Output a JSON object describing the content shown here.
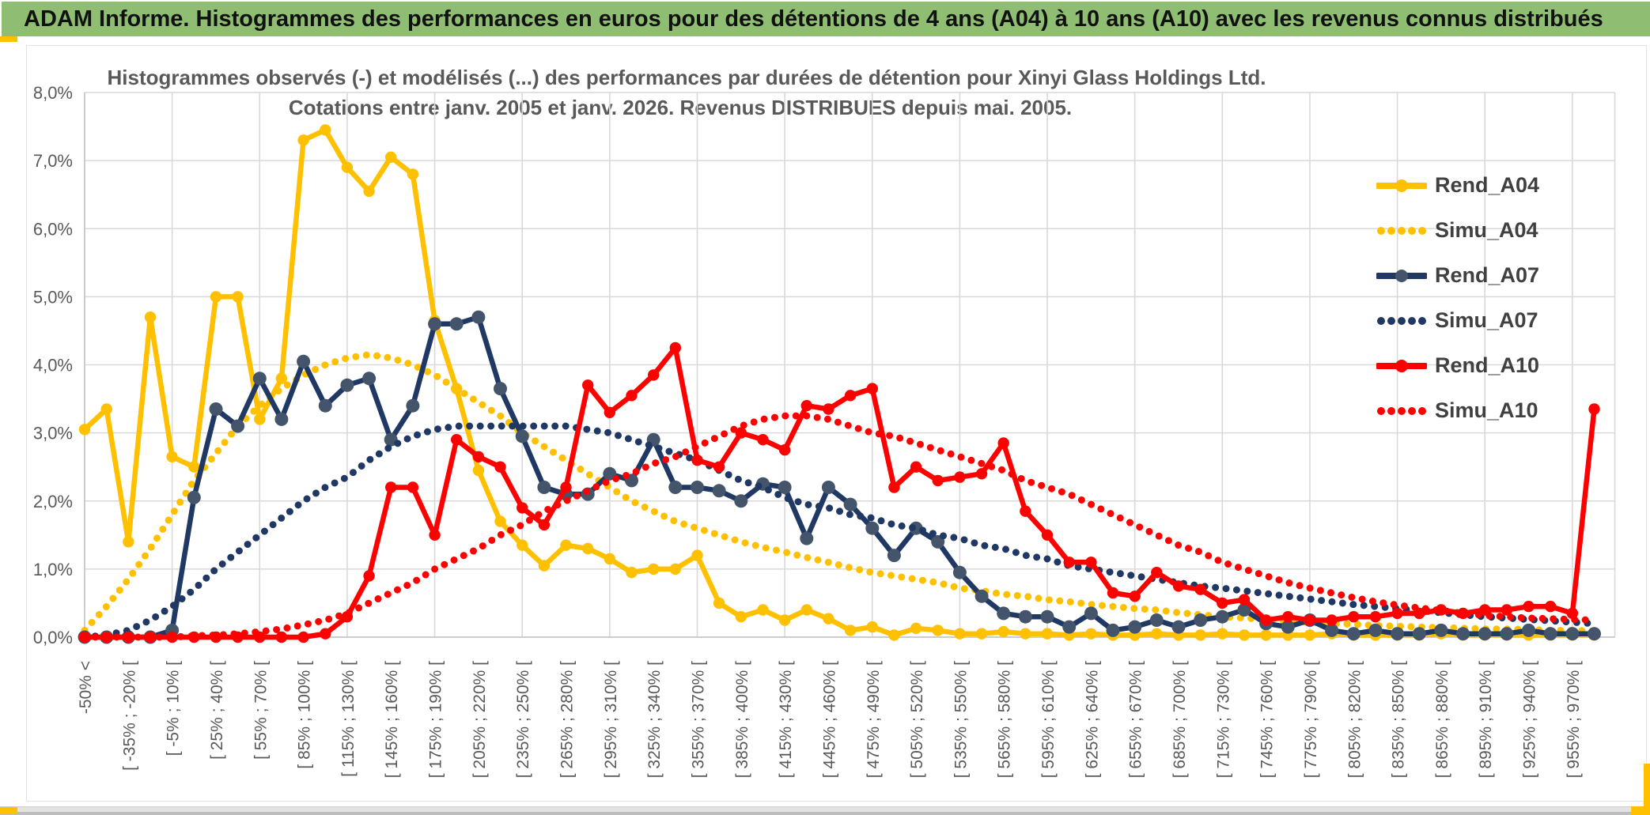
{
  "header": {
    "title": "ADAM Informe. Histogrammes des performances en euros pour des détentions de 4 ans (A04) à 10 ans (A10) avec les revenus connus distribués"
  },
  "chart": {
    "title_line1": "Histogrammes observés (-) et modélisés (...) des performances par durées de détention pour Xinyi Glass Holdings Ltd.",
    "title_line2": "Cotations entre janv. 2005 et janv. 2026. Revenus DISTRIBUES depuis mai. 2005."
  },
  "colors": {
    "header_green": "#8fbe72",
    "accent_gold": "#ffc000",
    "grid": "#d9d9d9",
    "axis_text": "#595959",
    "legend_text": "#404040",
    "gold": "#ffc000",
    "navy": "#1f3864",
    "navy_marker": "#44546a",
    "red": "#ff0000"
  },
  "chart_data": {
    "type": "line",
    "title": "Histogrammes observés (-) et modélisés (...) des performances par durées de détention pour Xinyi Glass Holdings Ltd.",
    "subtitle": "Cotations entre janv. 2005 et janv. 2026. Revenus DISTRIBUES depuis mai. 2005.",
    "ylabel": "",
    "xlabel": "",
    "ylim": [
      0,
      8
    ],
    "grid": true,
    "legend_position": "right-top",
    "y_tick_labels": [
      "0,0%",
      "1,0%",
      "2,0%",
      "3,0%",
      "4,0%",
      "5,0%",
      "6,0%",
      "7,0%",
      "8,0%"
    ],
    "x_tick_labels": [
      "-50% <",
      "[ -35% ; -20% [",
      "[ -5% ; 10% [",
      "[ 25% ; 40% [",
      "[ 55% ; 70% [",
      "[ 85% ; 100% [",
      "[ 115% ; 130% [",
      "[ 145% ; 160% [",
      "[ 175% ; 190% [",
      "[ 205% ; 220% [",
      "[ 235% ; 250% [",
      "[ 265% ; 280% [",
      "[ 295% ; 310% [",
      "[ 325% ; 340% [",
      "[ 355% ; 370% [",
      "[ 385% ; 400% [",
      "[ 415% ; 430% [",
      "[ 445% ; 460% [",
      "[ 475% ; 490% [",
      "[ 505% ; 520% [",
      "[ 535% ; 550% [",
      "[ 565% ; 580% [",
      "[ 595% ; 610% [",
      "[ 625% ; 640% [",
      "[ 655% ; 670% [",
      "[ 685% ; 700% [",
      "[ 715% ; 730% [",
      "[ 745% ; 760% [",
      "[ 775% ; 790% [",
      "[ 805% ; 820% [",
      "[ 835% ; 850% [",
      "[ 865% ; 880% [",
      "[ 895% ; 910% [",
      "[ 925% ; 940% [",
      "[ 955% ; 970% ["
    ],
    "x_labels_every_n_points": 2,
    "series": [
      {
        "name": "Rend_A04",
        "style": "solid",
        "color": "#ffc000",
        "marker_color": "#ffc000",
        "values": [
          3.05,
          3.35,
          1.4,
          4.7,
          2.65,
          2.5,
          5.0,
          5.0,
          3.2,
          3.8,
          7.3,
          7.45,
          6.9,
          6.55,
          7.05,
          6.8,
          4.65,
          3.65,
          2.45,
          1.7,
          1.35,
          1.05,
          1.35,
          1.3,
          1.15,
          0.95,
          1.0,
          1.0,
          1.2,
          0.5,
          0.3,
          0.4,
          0.25,
          0.4,
          0.27,
          0.1,
          0.15,
          0.03,
          0.13,
          0.1,
          0.05,
          0.05,
          0.08,
          0.05,
          0.05,
          0.03,
          0.05,
          0.03,
          0.03,
          0.05,
          0.03,
          0.03,
          0.05,
          0.03,
          0.03,
          0.03,
          0.03,
          0.05,
          0.03,
          0.03,
          0.03,
          0.03,
          0.05,
          0.03,
          0.03,
          0.03,
          0.03,
          0.03,
          0.03,
          0.03
        ]
      },
      {
        "name": "Simu_A04",
        "style": "dotted",
        "color": "#ffc000",
        "marker_color": "#ffc000",
        "values": [
          0.1,
          0.45,
          0.85,
          1.3,
          1.8,
          2.3,
          2.7,
          3.1,
          3.4,
          3.65,
          3.85,
          4.0,
          4.1,
          4.15,
          4.1,
          4.0,
          3.85,
          3.65,
          3.45,
          3.25,
          3.0,
          2.8,
          2.6,
          2.4,
          2.2,
          2.0,
          1.85,
          1.7,
          1.6,
          1.5,
          1.4,
          1.32,
          1.25,
          1.17,
          1.1,
          1.02,
          0.95,
          0.9,
          0.85,
          0.8,
          0.72,
          0.68,
          0.63,
          0.6,
          0.55,
          0.52,
          0.48,
          0.45,
          0.42,
          0.4,
          0.36,
          0.33,
          0.3,
          0.28,
          0.26,
          0.24,
          0.22,
          0.2,
          0.19,
          0.17,
          0.16,
          0.15,
          0.14,
          0.13,
          0.12,
          0.12,
          0.11,
          0.1,
          0.1,
          0.09
        ]
      },
      {
        "name": "Rend_A07",
        "style": "solid",
        "color": "#1f3864",
        "marker_color": "#44546a",
        "values": [
          0,
          0,
          0,
          0,
          0.1,
          2.05,
          3.35,
          3.1,
          3.8,
          3.2,
          4.05,
          3.4,
          3.7,
          3.8,
          2.9,
          3.4,
          4.6,
          4.6,
          4.7,
          3.65,
          2.95,
          2.2,
          2.1,
          2.1,
          2.4,
          2.3,
          2.9,
          2.2,
          2.2,
          2.15,
          2.0,
          2.25,
          2.2,
          1.45,
          2.2,
          1.95,
          1.6,
          1.2,
          1.6,
          1.4,
          0.95,
          0.6,
          0.35,
          0.3,
          0.3,
          0.15,
          0.35,
          0.1,
          0.15,
          0.25,
          0.15,
          0.25,
          0.3,
          0.4,
          0.2,
          0.15,
          0.25,
          0.1,
          0.05,
          0.1,
          0.05,
          0.05,
          0.1,
          0.05,
          0.05,
          0.05,
          0.1,
          0.05,
          0.05,
          0.05
        ]
      },
      {
        "name": "Simu_A07",
        "style": "dotted",
        "color": "#1f3864",
        "marker_color": "#1f3864",
        "values": [
          0.0,
          0.03,
          0.1,
          0.25,
          0.45,
          0.7,
          1.0,
          1.25,
          1.5,
          1.75,
          2.0,
          2.2,
          2.35,
          2.6,
          2.8,
          2.95,
          3.05,
          3.1,
          3.1,
          3.1,
          3.1,
          3.1,
          3.1,
          3.05,
          3.0,
          2.9,
          2.8,
          2.7,
          2.6,
          2.45,
          2.3,
          2.2,
          2.05,
          1.95,
          1.9,
          1.8,
          1.75,
          1.65,
          1.6,
          1.5,
          1.45,
          1.35,
          1.3,
          1.2,
          1.15,
          1.05,
          1.0,
          0.95,
          0.9,
          0.85,
          0.8,
          0.75,
          0.72,
          0.68,
          0.64,
          0.6,
          0.56,
          0.52,
          0.48,
          0.45,
          0.42,
          0.39,
          0.36,
          0.33,
          0.3,
          0.28,
          0.26,
          0.24,
          0.22,
          0.2
        ]
      },
      {
        "name": "Rend_A10",
        "style": "solid",
        "color": "#ff0000",
        "marker_color": "#ff0000",
        "values": [
          0,
          0,
          0,
          0,
          0,
          0,
          0,
          0,
          0,
          0,
          0,
          0.05,
          0.3,
          0.9,
          2.2,
          2.2,
          1.5,
          2.9,
          2.65,
          2.5,
          1.9,
          1.65,
          2.2,
          3.7,
          3.3,
          3.55,
          3.85,
          4.25,
          2.6,
          2.5,
          3.0,
          2.9,
          2.75,
          3.4,
          3.35,
          3.55,
          3.65,
          2.2,
          2.5,
          2.3,
          2.35,
          2.4,
          2.85,
          1.85,
          1.5,
          1.1,
          1.1,
          0.65,
          0.6,
          0.95,
          0.75,
          0.7,
          0.5,
          0.55,
          0.25,
          0.3,
          0.25,
          0.25,
          0.3,
          0.3,
          0.35,
          0.35,
          0.4,
          0.35,
          0.4,
          0.4,
          0.45,
          0.45,
          0.35,
          3.35
        ]
      },
      {
        "name": "Simu_A10",
        "style": "dotted",
        "color": "#ff0000",
        "marker_color": "#ff0000",
        "values": [
          0,
          0,
          0,
          0,
          0,
          0.02,
          0.03,
          0.05,
          0.08,
          0.12,
          0.18,
          0.25,
          0.35,
          0.5,
          0.65,
          0.8,
          1.0,
          1.15,
          1.3,
          1.5,
          1.65,
          1.85,
          2.0,
          2.15,
          2.3,
          2.4,
          2.55,
          2.65,
          2.8,
          2.95,
          3.1,
          3.2,
          3.25,
          3.25,
          3.2,
          3.1,
          3.0,
          2.95,
          2.85,
          2.75,
          2.65,
          2.55,
          2.45,
          2.3,
          2.2,
          2.1,
          1.95,
          1.8,
          1.65,
          1.5,
          1.35,
          1.25,
          1.1,
          1.0,
          0.9,
          0.8,
          0.72,
          0.65,
          0.58,
          0.52,
          0.47,
          0.43,
          0.39,
          0.35,
          0.32,
          0.3,
          0.28,
          0.27,
          0.26,
          0.25
        ]
      }
    ]
  }
}
